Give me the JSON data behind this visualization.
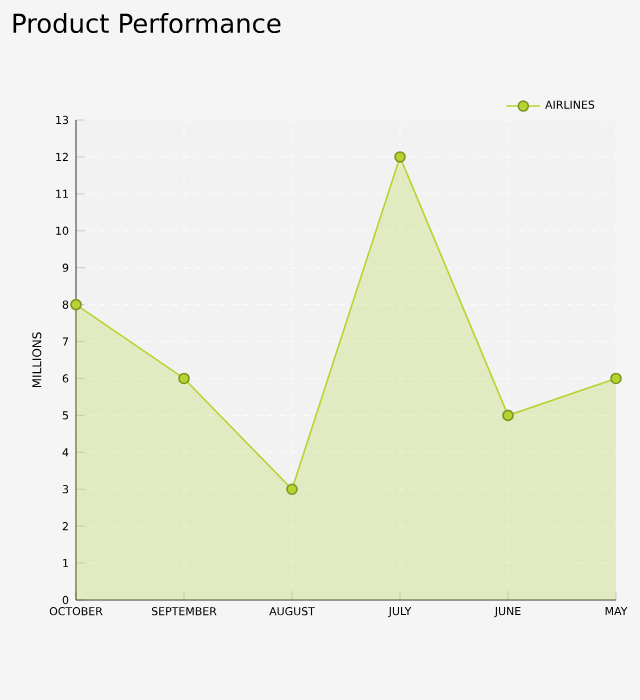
{
  "chart_data": {
    "type": "area",
    "title": "Product Performance",
    "ylabel": "MILLIONS",
    "categories": [
      "OCTOBER",
      "SEPTEMBER",
      "AUGUST",
      "JULY",
      "JUNE",
      "MAY"
    ],
    "series": [
      {
        "name": "AIRLINES",
        "color": "#b5d430",
        "values": [
          8,
          6,
          3,
          12,
          5,
          6
        ]
      }
    ],
    "ylim": [
      0,
      13
    ],
    "yticks": [
      0,
      1,
      2,
      3,
      4,
      5,
      6,
      7,
      8,
      9,
      10,
      11,
      12,
      13
    ],
    "grid": true,
    "legend": "top right",
    "marker": "circle"
  }
}
